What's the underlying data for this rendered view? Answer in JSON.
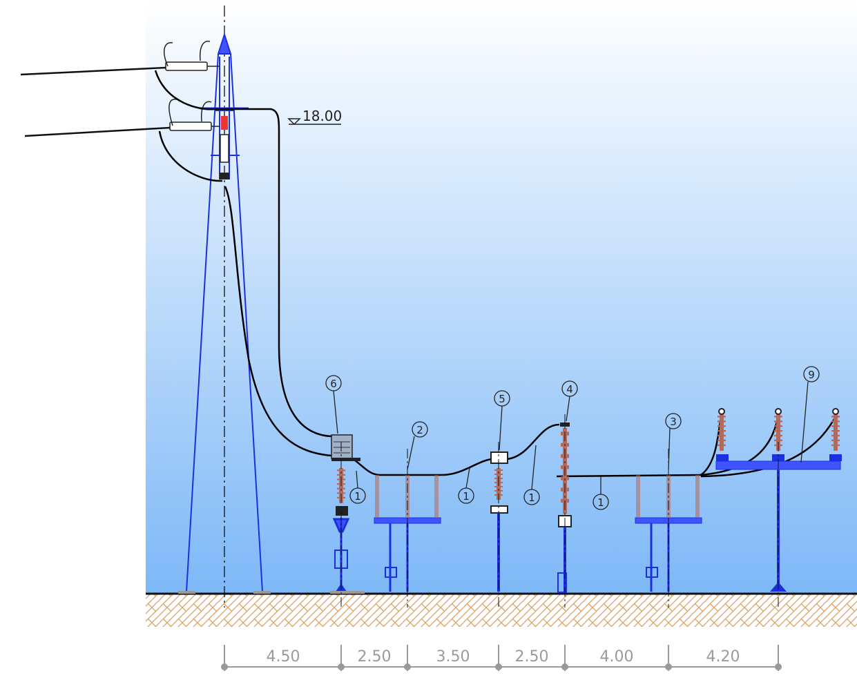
{
  "elevation_label": "18.00",
  "dimensions": [
    "4.50",
    "2.50",
    "3.50",
    "2.50",
    "4.00",
    "4.20"
  ],
  "equipment_tags": [
    "1",
    "1",
    "1",
    "1",
    "1",
    "2",
    "3",
    "4",
    "5",
    "6",
    "9"
  ],
  "colors": {
    "sky_top": "#ffffff",
    "sky_bottom": "#7db8f7",
    "structure": "#1c2fe0",
    "conductor": "#000000",
    "insulator": "#b5695a",
    "ground_hatch": "#d9a266",
    "dimension": "#9a9a9a"
  }
}
